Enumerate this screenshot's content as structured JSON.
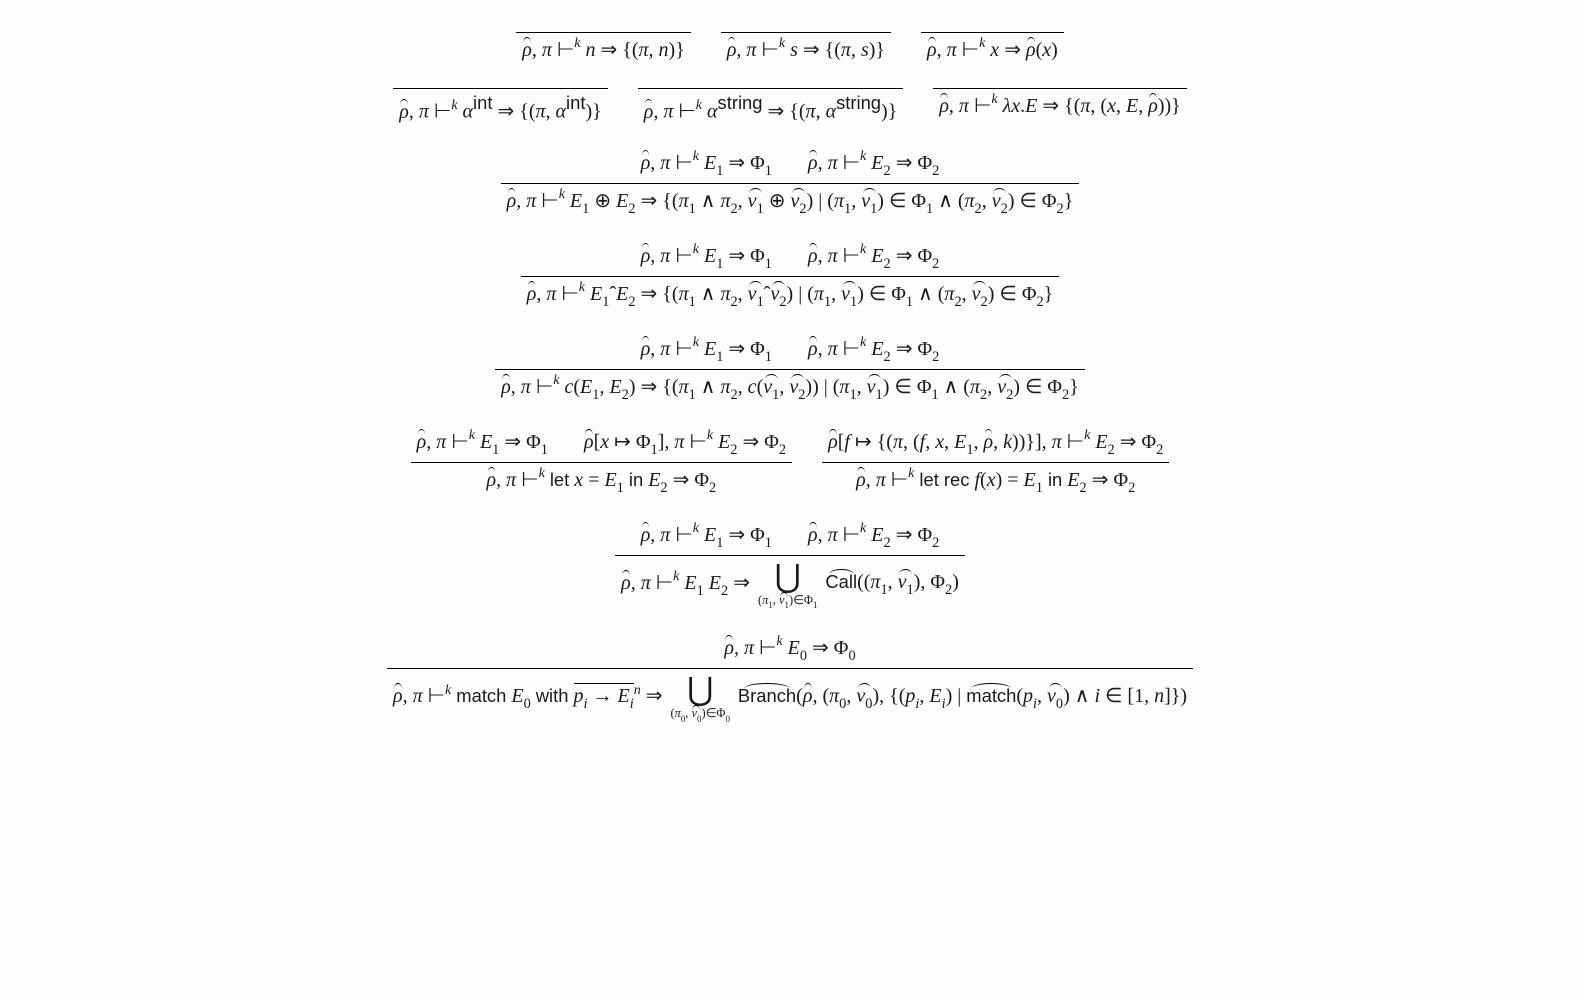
{
  "layout": {
    "description": "Inference rules figure with horizontal rule bars; rows of axioms/rules centered.",
    "symbols_used": [
      "ρ̂",
      "π",
      "⊢",
      "⇒",
      "Φ",
      "⊕",
      "λ",
      "∧",
      "∈",
      "⋃",
      "→"
    ],
    "font_family": "Times/Computer-Modern-like serif with sans-serif superscript labels",
    "judgment_form": "ρ̂, π ⊢ᵏ E ⇒ Φ"
  },
  "r1a": {
    "conclusion": "ρ̂, π ⊢ᵏ n ⇒ {(π, n)}"
  },
  "r1b": {
    "conclusion": "ρ̂, π ⊢ᵏ s ⇒ {(π, s)}"
  },
  "r1c": {
    "conclusion": "ρ̂, π ⊢ᵏ x ⇒ ρ̂(x)"
  },
  "r2a": {
    "conclusion_pre": "ρ̂, π ⊢ᵏ α",
    "conclusion_sup": "int",
    "conclusion_post": " ⇒ {(π, α",
    "conclusion_sup2": "int",
    "conclusion_end": ")}"
  },
  "r2b": {
    "conclusion_pre": "ρ̂, π ⊢ᵏ α",
    "conclusion_sup": "string",
    "conclusion_post": " ⇒ {(π, α",
    "conclusion_sup2": "string",
    "conclusion_end": ")}"
  },
  "r2c": {
    "conclusion": "ρ̂, π ⊢ᵏ λx.E ⇒ {(π, (x, E, ρ̂))}"
  },
  "r3": {
    "premise1": "ρ̂, π ⊢ᵏ E₁ ⇒ Φ₁",
    "premise2": "ρ̂, π ⊢ᵏ E₂ ⇒ Φ₂",
    "conclusion": "ρ̂, π ⊢ᵏ E₁ ⊕ E₂ ⇒ {(π₁ ∧ π₂, v̂₁ ⊕ v̂₂) | (π₁, v̂₁) ∈ Φ₁ ∧ (π₂, v̂₂) ∈ Φ₂}"
  },
  "r4": {
    "premise1": "ρ̂, π ⊢ᵏ E₁ ⇒ Φ₁",
    "premise2": "ρ̂, π ⊢ᵏ E₂ ⇒ Φ₂",
    "conclusion": "ρ̂, π ⊢ᵏ E₁ˆE₂ ⇒ {(π₁ ∧ π₂, v̂₁ˆv̂₂) | (π₁, v̂₁) ∈ Φ₁ ∧ (π₂, v̂₂) ∈ Φ₂}"
  },
  "r5": {
    "premise1": "ρ̂, π ⊢ᵏ E₁ ⇒ Φ₁",
    "premise2": "ρ̂, π ⊢ᵏ E₂ ⇒ Φ₂",
    "conclusion": "ρ̂, π ⊢ᵏ c(E₁, E₂) ⇒ {(π₁ ∧ π₂, c(v̂₁, v̂₂)) | (π₁, v̂₁) ∈ Φ₁ ∧ (π₂, v̂₂) ∈ Φ₂}"
  },
  "r6a": {
    "premise1": "ρ̂, π ⊢ᵏ E₁ ⇒ Φ₁",
    "premise2": "ρ̂[x ↦ Φ₁], π ⊢ᵏ E₂ ⇒ Φ₂",
    "conclusion": "ρ̂, π ⊢ᵏ let x = E₁ in E₂ ⇒ Φ₂"
  },
  "r6b": {
    "premise": "ρ̂[f ↦ {(π, (f, x, E₁, ρ̂, k))}], π ⊢ᵏ E₂ ⇒ Φ₂",
    "conclusion": "ρ̂, π ⊢ᵏ let rec f(x) = E₁ in E₂ ⇒ Φ₂"
  },
  "r7": {
    "premise1": "ρ̂, π ⊢ᵏ E₁ ⇒ Φ₁",
    "premise2": "ρ̂, π ⊢ᵏ E₂ ⇒ Φ₂",
    "conclusion_pre": "ρ̂, π ⊢ᵏ E₁ E₂ ⇒ ",
    "union_under": "(π₁, v̂₁)∈Φ₁",
    "call_label": "Call",
    "conclusion_post": "((π₁, v̂₁), Φ₂)"
  },
  "r8": {
    "premise": "ρ̂, π ⊢ᵏ E₀ ⇒ Φ₀",
    "conclusion_pre": "ρ̂, π ⊢ᵏ match E₀ with ",
    "pattern_seq": "pᵢ → Eᵢ",
    "pattern_sup": "n",
    "arrow": " ⇒ ",
    "union_under": "(π₀, v̂₀)∈Φ₀",
    "branch_label": "Branch",
    "mid": "(ρ̂, (π₀, v̂₀), {(pᵢ, Eᵢ) | ",
    "match_label": "match",
    "tail": "(pᵢ, v̂₀) ∧ i ∈ [1, n]})"
  }
}
